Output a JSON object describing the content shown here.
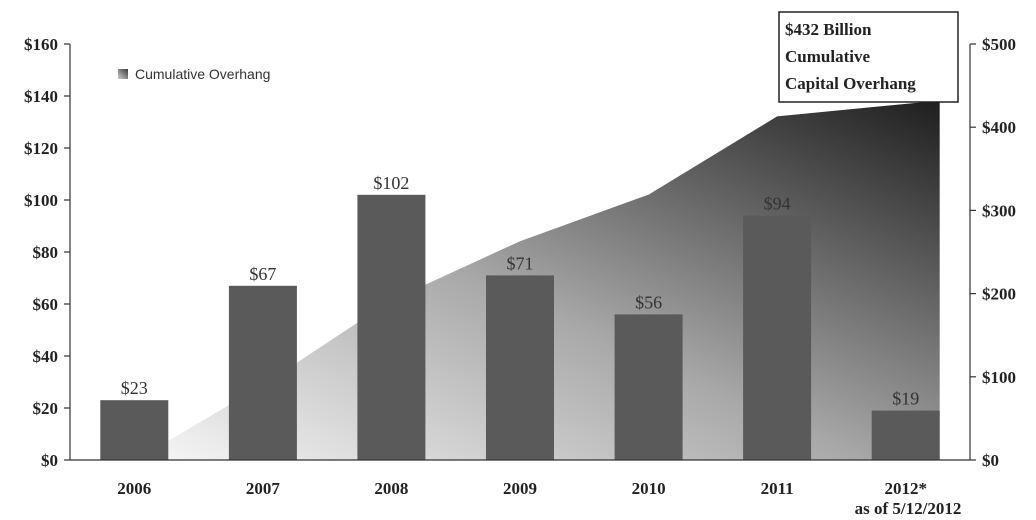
{
  "chart_data": {
    "type": "bar",
    "categories": [
      "2006",
      "2007",
      "2008",
      "2009",
      "2010",
      "2011",
      "2012*"
    ],
    "category_note": "as of 5/12/2012",
    "values": [
      23,
      67,
      102,
      71,
      56,
      94,
      19
    ],
    "value_labels": [
      "$23",
      "$67",
      "$102",
      "$71",
      "$56",
      "$94",
      "$19"
    ],
    "ylim": [
      0,
      160
    ],
    "y_ticks": [
      0,
      20,
      40,
      60,
      80,
      100,
      120,
      140,
      160
    ],
    "y_tick_labels": [
      "$0",
      "$20",
      "$40",
      "$60",
      "$80",
      "$100",
      "$120",
      "$140",
      "$160"
    ],
    "y2lim": [
      0,
      500
    ],
    "y2_ticks": [
      0,
      100,
      200,
      300,
      400,
      500
    ],
    "y2_tick_labels": [
      "$0",
      "$100",
      "$200",
      "$300",
      "$400",
      "$500"
    ],
    "area_series": {
      "name": "Cumulative Overhang",
      "axis": "right",
      "values": [
        23,
        90,
        192,
        263,
        319,
        413,
        432
      ]
    },
    "bar_color": "#5a5a5a",
    "legend_position": "top-left",
    "annotation": [
      "$432 Billion",
      "Cumulative",
      "Capital Overhang"
    ],
    "grid": false
  }
}
